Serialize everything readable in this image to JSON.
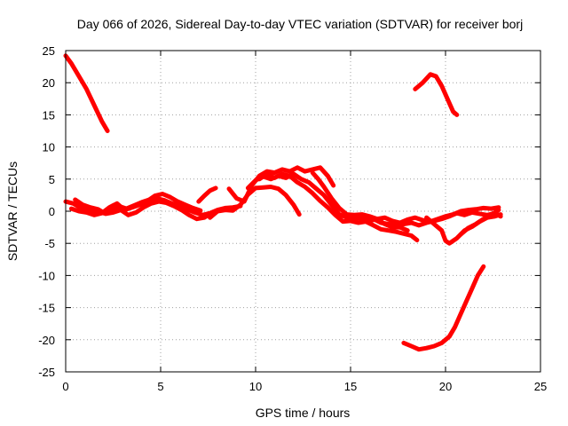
{
  "chart_data": {
    "type": "line",
    "title": "Day 066 of 2026, Sidereal Day-to-day VTEC variation (SDTVAR) for receiver borj",
    "xlabel": "GPS time / hours",
    "ylabel": "SDTVAR / TECUs",
    "xlim": [
      0,
      25
    ],
    "ylim": [
      -25,
      25
    ],
    "x_ticks": [
      0,
      5,
      10,
      15,
      20,
      25
    ],
    "y_ticks": [
      -25,
      -20,
      -15,
      -10,
      -5,
      0,
      5,
      10,
      15,
      20,
      25
    ],
    "grid": true,
    "color": "#ff0000",
    "series": [
      {
        "name": "s1",
        "points": [
          [
            0.0,
            24.2
          ],
          [
            0.3,
            23.0
          ],
          [
            0.7,
            21.0
          ],
          [
            1.1,
            19.0
          ],
          [
            1.5,
            16.5
          ],
          [
            1.9,
            14.0
          ],
          [
            2.2,
            12.5
          ]
        ]
      },
      {
        "name": "s2",
        "points": [
          [
            0.0,
            1.5
          ],
          [
            0.4,
            1.2
          ],
          [
            0.8,
            0.5
          ],
          [
            1.2,
            0.2
          ],
          [
            1.6,
            0.0
          ],
          [
            2.0,
            -0.3
          ],
          [
            2.4,
            0.3
          ],
          [
            2.8,
            0.8
          ],
          [
            3.2,
            0.4
          ],
          [
            3.6,
            0.9
          ],
          [
            4.0,
            1.4
          ],
          [
            4.4,
            1.8
          ],
          [
            4.8,
            2.0
          ],
          [
            5.2,
            1.7
          ],
          [
            5.6,
            1.2
          ],
          [
            6.0,
            0.8
          ],
          [
            6.4,
            0.3
          ],
          [
            6.8,
            -0.2
          ],
          [
            7.2,
            -0.6
          ],
          [
            7.6,
            -0.3
          ],
          [
            8.0,
            0.2
          ],
          [
            8.4,
            0.5
          ],
          [
            8.8,
            0.6
          ],
          [
            9.2,
            0.8
          ]
        ]
      },
      {
        "name": "s3",
        "points": [
          [
            0.3,
            0.4
          ],
          [
            0.7,
            0.0
          ],
          [
            1.1,
            -0.2
          ],
          [
            1.5,
            -0.6
          ],
          [
            1.9,
            -0.3
          ],
          [
            2.3,
            0.6
          ],
          [
            2.7,
            1.2
          ],
          [
            3.1,
            0.2
          ],
          [
            3.5,
            0.6
          ],
          [
            3.9,
            1.0
          ],
          [
            4.3,
            1.6
          ],
          [
            4.7,
            2.4
          ],
          [
            5.1,
            2.7
          ],
          [
            5.5,
            2.2
          ],
          [
            5.9,
            1.5
          ],
          [
            6.3,
            1.0
          ],
          [
            6.7,
            0.5
          ],
          [
            7.1,
            0.1
          ]
        ]
      },
      {
        "name": "s4",
        "points": [
          [
            0.5,
            1.8
          ],
          [
            0.9,
            1.0
          ],
          [
            1.3,
            0.6
          ],
          [
            1.7,
            0.3
          ],
          [
            2.1,
            -0.4
          ],
          [
            2.5,
            -0.2
          ],
          [
            2.9,
            0.2
          ],
          [
            3.3,
            -0.6
          ],
          [
            3.7,
            -0.2
          ],
          [
            4.1,
            0.6
          ],
          [
            4.5,
            1.2
          ],
          [
            4.9,
            1.5
          ],
          [
            5.3,
            1.3
          ],
          [
            5.7,
            0.8
          ],
          [
            6.1,
            0.2
          ],
          [
            6.5,
            -0.6
          ],
          [
            6.9,
            -1.2
          ],
          [
            7.3,
            -1.0
          ],
          [
            7.7,
            -0.2
          ]
        ]
      },
      {
        "name": "s5",
        "points": [
          [
            7.0,
            1.5
          ],
          [
            7.3,
            2.4
          ],
          [
            7.6,
            3.2
          ],
          [
            7.9,
            3.6
          ]
        ]
      },
      {
        "name": "s6",
        "points": [
          [
            7.6,
            -1.0
          ],
          [
            8.0,
            0.0
          ],
          [
            8.4,
            0.2
          ],
          [
            8.8,
            0.1
          ],
          [
            9.2,
            1.0
          ],
          [
            9.6,
            2.6
          ],
          [
            10.0,
            3.6
          ],
          [
            10.4,
            3.7
          ],
          [
            10.8,
            3.8
          ],
          [
            11.2,
            3.5
          ],
          [
            11.6,
            2.5
          ],
          [
            12.0,
            1.0
          ],
          [
            12.3,
            -0.5
          ]
        ]
      },
      {
        "name": "s7",
        "points": [
          [
            8.6,
            3.5
          ],
          [
            9.0,
            2.0
          ],
          [
            9.4,
            1.5
          ],
          [
            9.8,
            4.0
          ],
          [
            10.2,
            5.5
          ],
          [
            10.6,
            6.2
          ],
          [
            11.0,
            6.0
          ],
          [
            11.4,
            6.5
          ],
          [
            11.8,
            6.2
          ],
          [
            12.2,
            6.8
          ],
          [
            12.6,
            6.2
          ],
          [
            13.0,
            6.5
          ],
          [
            13.4,
            6.8
          ],
          [
            13.8,
            5.5
          ],
          [
            14.1,
            4.0
          ]
        ]
      },
      {
        "name": "s8",
        "points": [
          [
            9.6,
            3.6
          ],
          [
            10.0,
            4.8
          ],
          [
            10.4,
            5.4
          ],
          [
            10.8,
            5.0
          ],
          [
            11.2,
            5.5
          ],
          [
            11.6,
            5.2
          ],
          [
            12.0,
            5.8
          ],
          [
            12.4,
            5.0
          ],
          [
            12.8,
            4.5
          ],
          [
            13.2,
            3.5
          ],
          [
            13.6,
            2.5
          ],
          [
            14.0,
            1.0
          ],
          [
            14.4,
            -0.5
          ],
          [
            14.8,
            -1.0
          ],
          [
            15.2,
            -1.2
          ],
          [
            15.6,
            -1.0
          ],
          [
            16.0,
            -1.5
          ],
          [
            16.4,
            -1.2
          ],
          [
            16.8,
            -2.0
          ],
          [
            17.2,
            -2.5
          ],
          [
            17.6,
            -2.5
          ],
          [
            18.0,
            -3.0
          ]
        ]
      },
      {
        "name": "s9",
        "points": [
          [
            10.2,
            5.0
          ],
          [
            10.6,
            5.8
          ],
          [
            11.0,
            5.2
          ],
          [
            11.4,
            5.8
          ],
          [
            11.8,
            5.5
          ],
          [
            12.2,
            4.5
          ],
          [
            12.6,
            3.8
          ],
          [
            13.0,
            2.8
          ],
          [
            13.4,
            1.6
          ],
          [
            13.8,
            0.6
          ],
          [
            14.2,
            -0.6
          ],
          [
            14.6,
            -1.6
          ],
          [
            15.0,
            -1.5
          ],
          [
            15.4,
            -1.8
          ],
          [
            15.8,
            -1.6
          ],
          [
            16.2,
            -2.2
          ],
          [
            16.6,
            -2.8
          ],
          [
            17.0,
            -3.0
          ],
          [
            17.4,
            -3.2
          ],
          [
            17.8,
            -3.5
          ],
          [
            18.2,
            -3.8
          ],
          [
            18.5,
            -4.5
          ]
        ]
      },
      {
        "name": "s10",
        "points": [
          [
            13.0,
            6.0
          ],
          [
            13.3,
            5.0
          ],
          [
            13.6,
            3.8
          ],
          [
            14.0,
            2.0
          ],
          [
            14.4,
            0.5
          ],
          [
            14.8,
            -0.5
          ],
          [
            15.2,
            -0.6
          ],
          [
            15.6,
            -0.5
          ],
          [
            16.0,
            -0.8
          ],
          [
            16.4,
            -1.2
          ],
          [
            16.8,
            -1.0
          ],
          [
            17.2,
            -1.5
          ],
          [
            17.6,
            -1.8
          ],
          [
            18.0,
            -1.3
          ],
          [
            18.4,
            -1.0
          ],
          [
            18.8,
            -1.4
          ],
          [
            19.2,
            -1.6
          ],
          [
            19.6,
            -1.2
          ],
          [
            20.0,
            -0.8
          ],
          [
            20.4,
            -0.5
          ],
          [
            20.8,
            0.0
          ],
          [
            21.2,
            0.2
          ],
          [
            21.6,
            0.3
          ],
          [
            22.0,
            0.5
          ],
          [
            22.4,
            0.4
          ],
          [
            22.8,
            0.6
          ]
        ]
      },
      {
        "name": "s11",
        "points": [
          [
            15.0,
            -1.5
          ],
          [
            15.4,
            -1.0
          ],
          [
            15.8,
            -1.6
          ],
          [
            16.2,
            -1.2
          ],
          [
            16.6,
            -1.8
          ],
          [
            17.0,
            -2.0
          ],
          [
            17.4,
            -2.2
          ],
          [
            17.8,
            -2.0
          ],
          [
            18.2,
            -1.8
          ],
          [
            18.6,
            -2.2
          ],
          [
            19.0,
            -1.8
          ],
          [
            19.4,
            -1.5
          ],
          [
            19.8,
            -1.2
          ],
          [
            20.2,
            -0.8
          ],
          [
            20.6,
            -0.3
          ],
          [
            21.0,
            -0.6
          ],
          [
            21.4,
            -0.2
          ],
          [
            21.8,
            -0.4
          ],
          [
            22.2,
            -0.6
          ],
          [
            22.6,
            -0.3
          ],
          [
            22.9,
            -0.8
          ]
        ]
      },
      {
        "name": "s12",
        "points": [
          [
            19.0,
            -1.0
          ],
          [
            19.4,
            -2.0
          ],
          [
            19.8,
            -3.0
          ],
          [
            20.0,
            -4.6
          ],
          [
            20.2,
            -5.0
          ],
          [
            20.6,
            -4.2
          ],
          [
            21.0,
            -3.0
          ],
          [
            21.4,
            -2.4
          ],
          [
            21.8,
            -1.6
          ],
          [
            22.2,
            -1.0
          ],
          [
            22.6,
            -0.8
          ],
          [
            22.9,
            -0.5
          ]
        ]
      },
      {
        "name": "s13",
        "points": [
          [
            20.8,
            -3.6
          ],
          [
            21.2,
            -2.6
          ],
          [
            21.6,
            -2.0
          ],
          [
            22.0,
            -1.2
          ],
          [
            22.4,
            -0.6
          ],
          [
            22.8,
            0.2
          ]
        ]
      },
      {
        "name": "s14",
        "points": [
          [
            18.4,
            19.0
          ],
          [
            18.8,
            20.0
          ],
          [
            19.2,
            21.3
          ],
          [
            19.5,
            21.0
          ],
          [
            19.8,
            19.5
          ],
          [
            20.1,
            17.5
          ],
          [
            20.4,
            15.5
          ],
          [
            20.6,
            15.0
          ]
        ]
      },
      {
        "name": "s15",
        "points": [
          [
            17.8,
            -20.5
          ],
          [
            18.2,
            -21.0
          ],
          [
            18.6,
            -21.5
          ],
          [
            19.0,
            -21.3
          ],
          [
            19.4,
            -21.0
          ],
          [
            19.8,
            -20.5
          ],
          [
            20.2,
            -19.5
          ],
          [
            20.5,
            -18.0
          ],
          [
            20.8,
            -16.0
          ],
          [
            21.1,
            -14.0
          ],
          [
            21.4,
            -12.0
          ],
          [
            21.7,
            -10.0
          ],
          [
            22.0,
            -8.6
          ]
        ]
      }
    ]
  }
}
